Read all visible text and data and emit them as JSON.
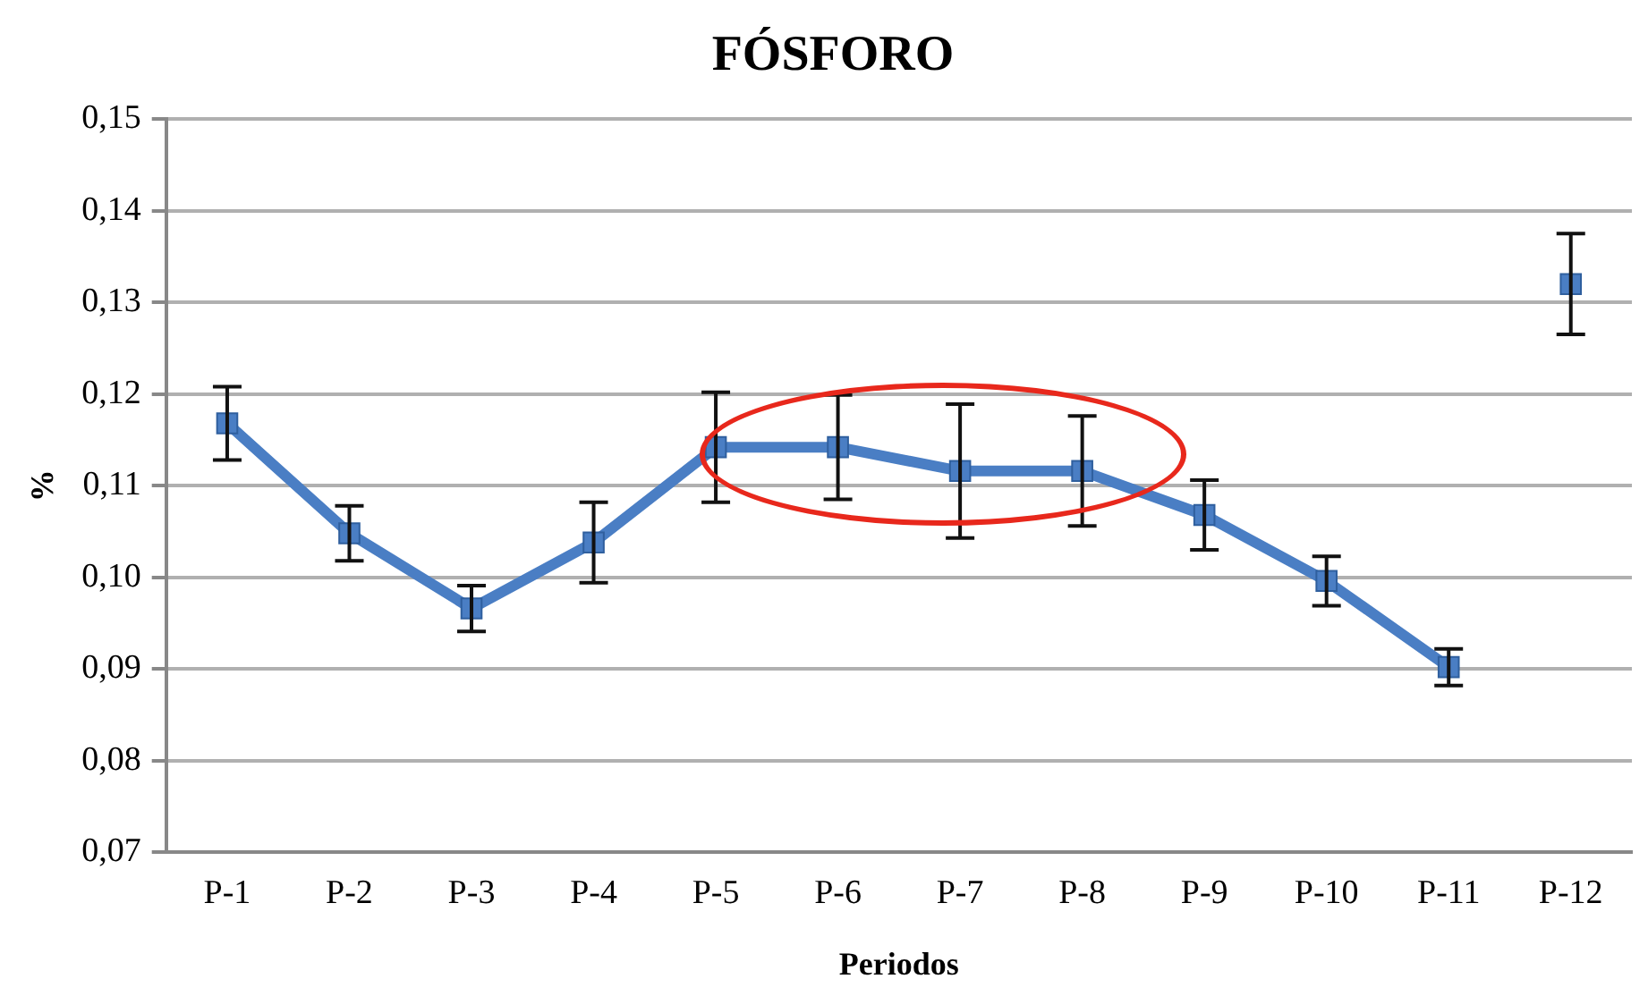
{
  "chart_data": {
    "type": "line",
    "title": "FÓSFORO",
    "xlabel": "Periodos",
    "ylabel": "%",
    "categories": [
      "P-1",
      "P-2",
      "P-3",
      "P-4",
      "P-5",
      "P-6",
      "P-7",
      "P-8",
      "P-9",
      "P-10",
      "P-11",
      "P-12"
    ],
    "series": [
      {
        "color": "#4a7ec4",
        "values": [
          0.1168,
          0.1048,
          0.0966,
          0.1038,
          0.1142,
          0.1142,
          0.1116,
          0.1116,
          0.1068,
          0.0996,
          0.0902,
          null
        ],
        "errors": [
          0.004,
          0.003,
          0.0025,
          0.0044,
          0.006,
          0.0057,
          0.0073,
          0.006,
          0.0038,
          0.0027,
          0.002,
          null
        ]
      },
      {
        "color": "#4a7ec4",
        "values": [
          null,
          null,
          null,
          null,
          null,
          null,
          null,
          null,
          null,
          null,
          null,
          0.132
        ],
        "errors": [
          null,
          null,
          null,
          null,
          null,
          null,
          null,
          null,
          null,
          null,
          null,
          0.0055
        ]
      }
    ],
    "ylim": [
      0.07,
      0.15
    ],
    "yticks": [
      {
        "value": 0.07,
        "label": "0,07"
      },
      {
        "value": 0.08,
        "label": "0,08"
      },
      {
        "value": 0.09,
        "label": "0,09"
      },
      {
        "value": 0.1,
        "label": "0,10"
      },
      {
        "value": 0.11,
        "label": "0,11"
      },
      {
        "value": 0.12,
        "label": "0,12"
      },
      {
        "value": 0.13,
        "label": "0,13"
      },
      {
        "value": 0.14,
        "label": "0,14"
      },
      {
        "value": 0.15,
        "label": "0,15"
      }
    ],
    "grid": "y",
    "marker": "square",
    "line_style": "solid"
  }
}
